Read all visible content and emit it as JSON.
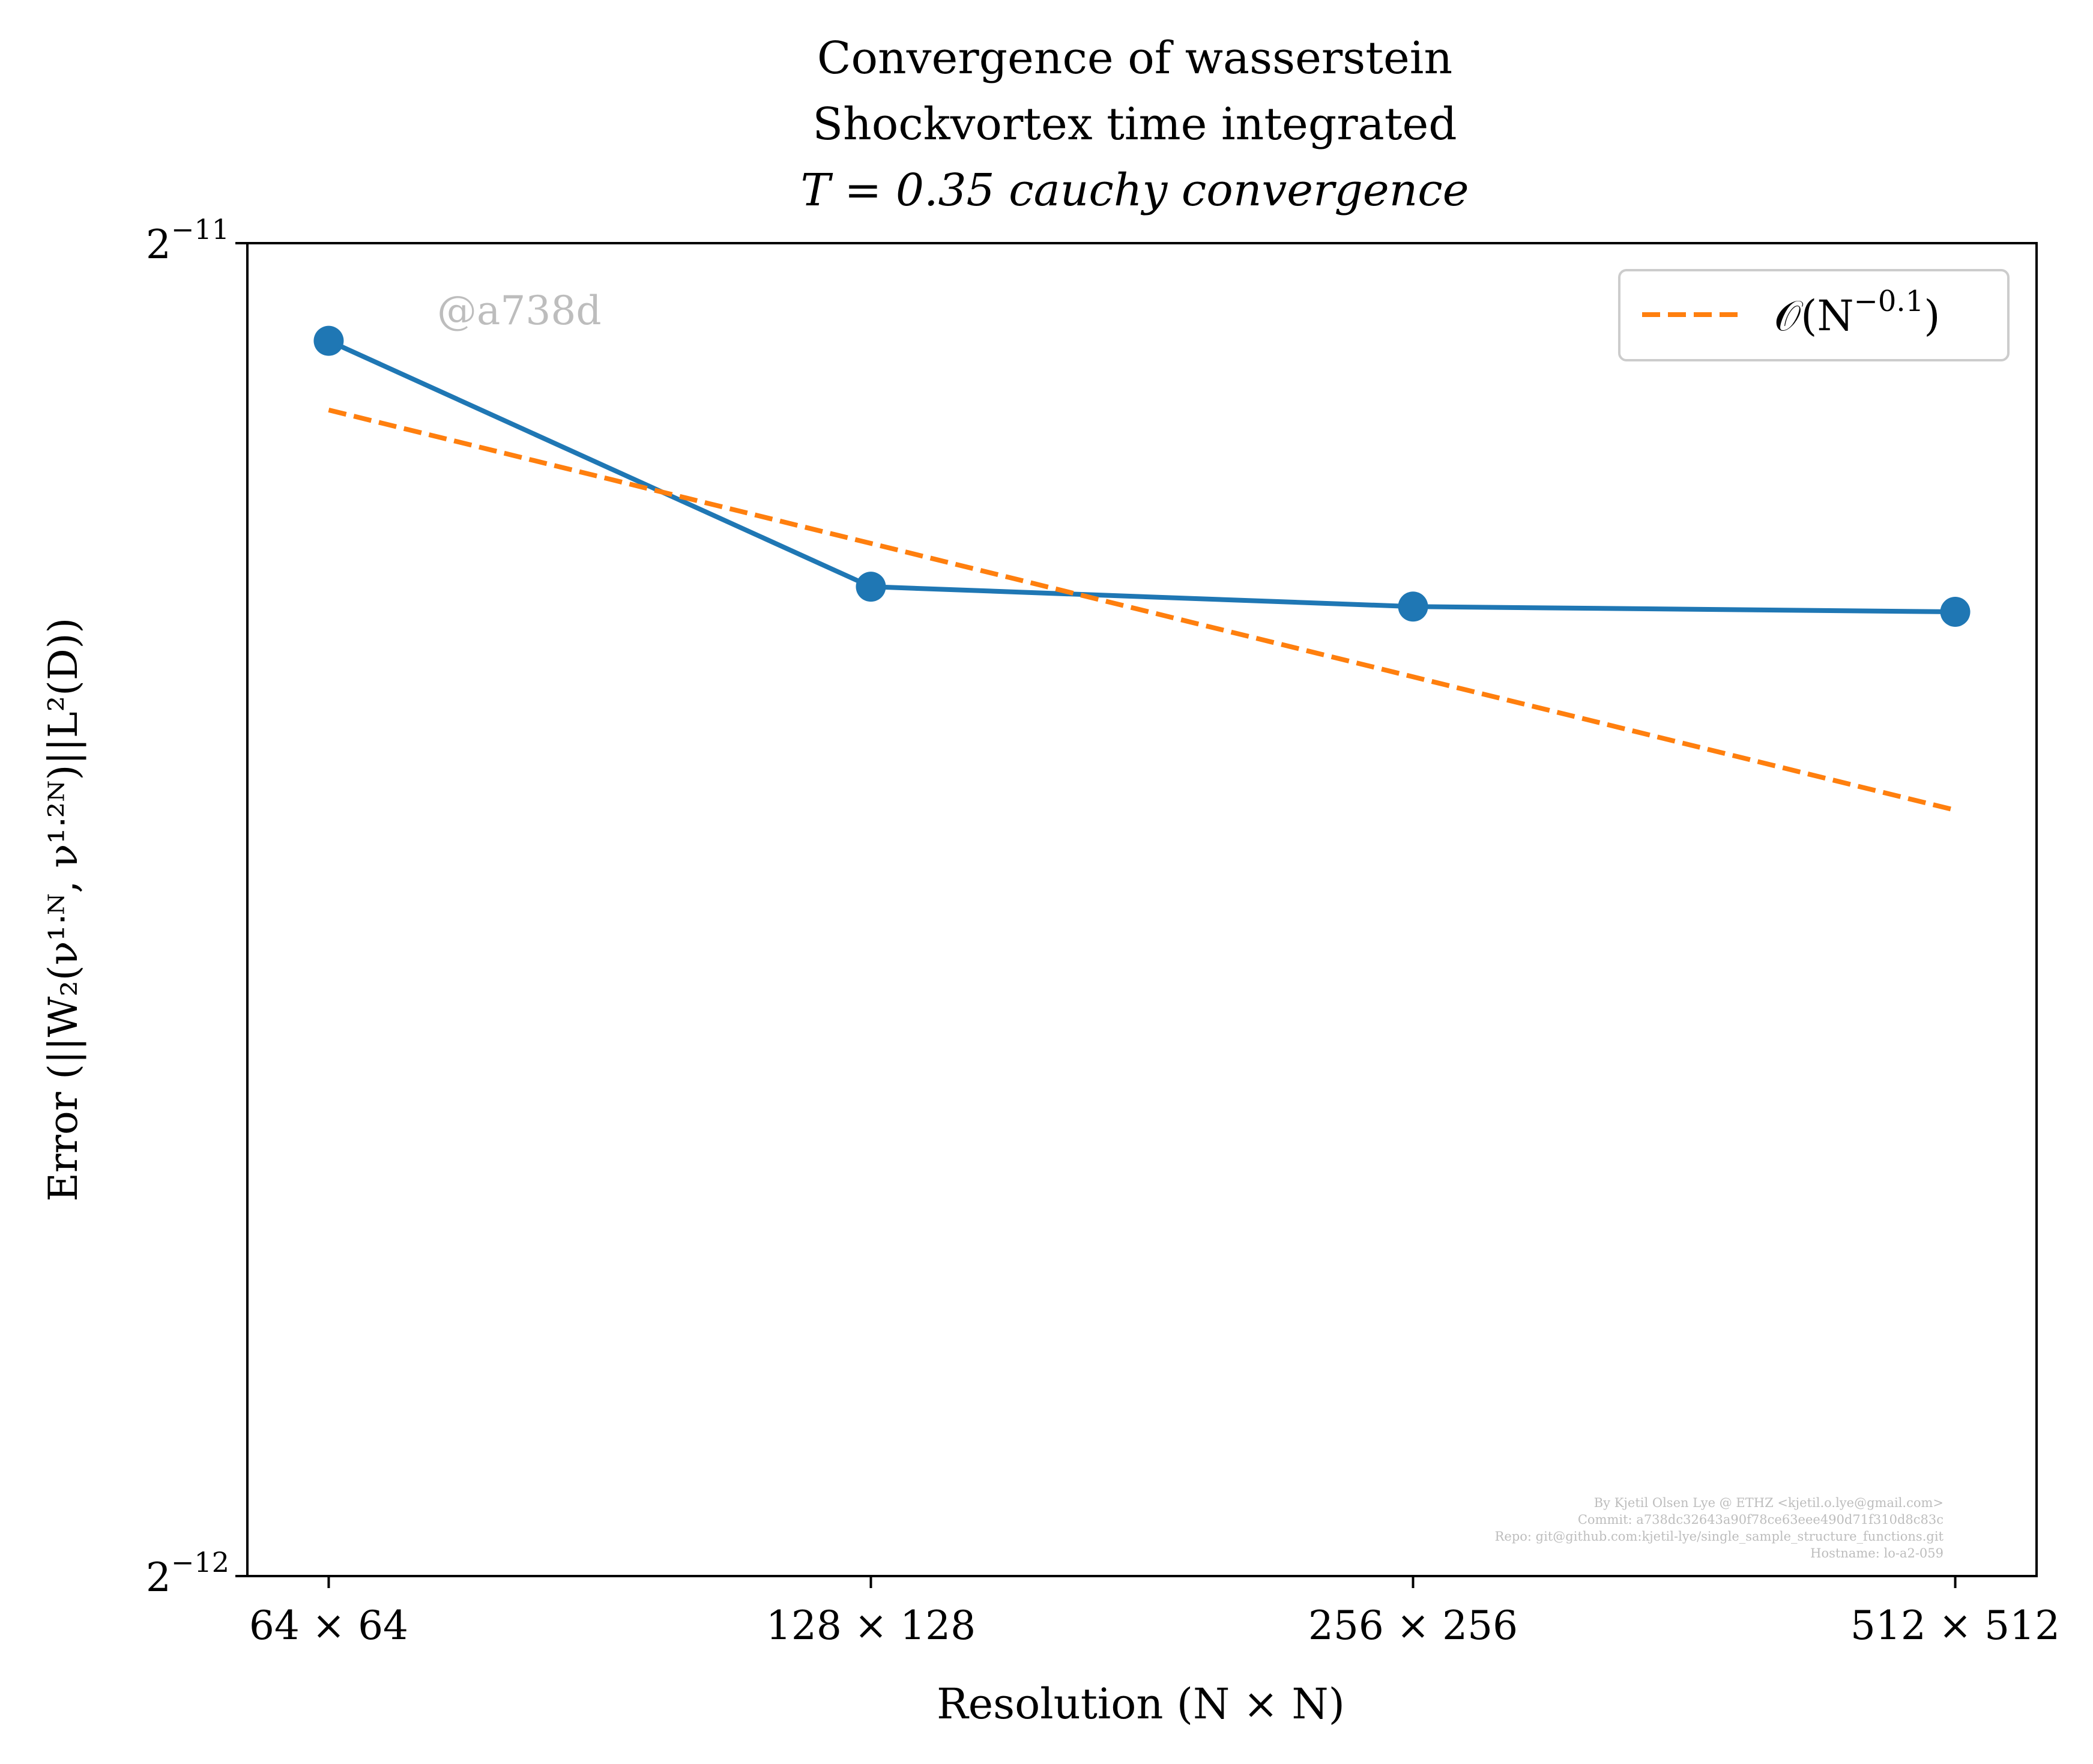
{
  "chart_data": {
    "type": "line",
    "title_lines": [
      "Convergence of wasserstein",
      "Shockvortex time integrated",
      "T = 0.35 cauchy convergence"
    ],
    "xlabel": "Resolution (N × N)",
    "ylabel": "Error (||W₂(ν¹ᐧᴺ, ν¹ᐧ²ᴺ)||L²(D))",
    "x_scale": "log2",
    "y_scale": "log2",
    "categories": [
      "64 × 64",
      "128 × 128",
      "256 × 256",
      "512 × 512"
    ],
    "x": [
      64,
      128,
      256,
      512
    ],
    "ylim_exponents": [
      -12,
      -11
    ],
    "y_ticks": [
      {
        "base": "2",
        "exp": "−11"
      },
      {
        "base": "2",
        "exp": "−12"
      }
    ],
    "series": [
      {
        "values": [
          0.0004641,
          0.0004084,
          0.0004042,
          0.0004031
        ],
        "color": "#1f77b4",
        "style": "solid",
        "marker": "circle"
      },
      {
        "name": "O(N^−0.1)",
        "values": [
          0.0004477,
          0.0004177,
          0.0003897,
          0.0003636
        ],
        "color": "#ff7f0e",
        "style": "dashed"
      }
    ],
    "legend": {
      "position": "top-right",
      "label_base": "𝒪(N",
      "label_exp": "−0.1",
      "label_close": ")"
    },
    "grid": false
  },
  "watermark": "@a738d",
  "credits": [
    "By Kjetil Olsen Lye @ ETHZ <kjetil.o.lye@gmail.com>",
    "Commit: a738dc32643a90f78ce63eee490d71f310d8c83c",
    "Repo: git@github.com:kjetil-lye/single_sample_structure_functions.git",
    "Hostname: lo-a2-059"
  ]
}
